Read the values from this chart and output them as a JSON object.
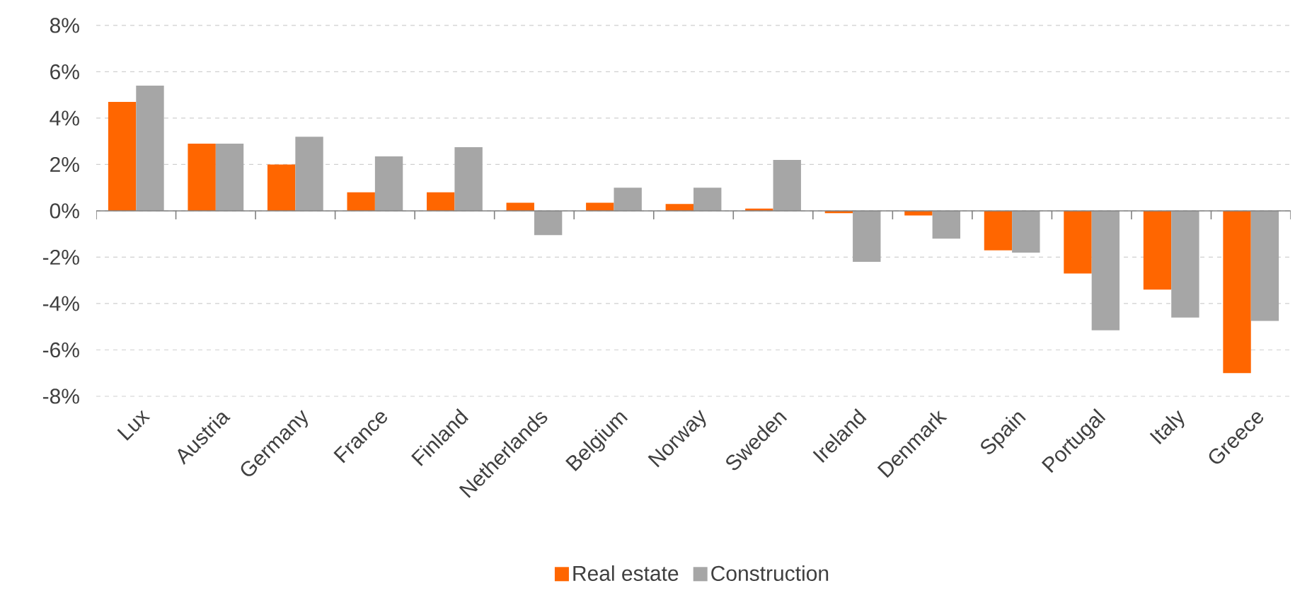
{
  "chart_data": {
    "type": "bar",
    "categories": [
      "Lux",
      "Austria",
      "Germany",
      "France",
      "Finland",
      "Netherlands",
      "Belgium",
      "Norway",
      "Sweden",
      "Ireland",
      "Denmark",
      "Spain",
      "Portugal",
      "Italy",
      "Greece"
    ],
    "series": [
      {
        "name": "Real estate",
        "color": "#ff6600",
        "values": [
          4.7,
          2.9,
          2.0,
          0.8,
          0.8,
          0.35,
          0.35,
          0.3,
          0.1,
          -0.1,
          -0.2,
          -1.7,
          -2.7,
          -3.4,
          -7.0
        ]
      },
      {
        "name": "Construction",
        "color": "#a6a6a6",
        "values": [
          5.4,
          2.9,
          3.2,
          2.35,
          2.75,
          -1.05,
          1.0,
          1.0,
          2.2,
          -2.2,
          -1.2,
          -1.8,
          -5.15,
          -4.6,
          -4.75
        ]
      }
    ],
    "ylim": [
      -8,
      8
    ],
    "yticks": [
      {
        "value": -8,
        "label": "-8%"
      },
      {
        "value": -6,
        "label": "-6%"
      },
      {
        "value": -4,
        "label": "-4%"
      },
      {
        "value": -2,
        "label": "-2%"
      },
      {
        "value": 0,
        "label": "0%"
      },
      {
        "value": 2,
        "label": "2%"
      },
      {
        "value": 4,
        "label": "4%"
      },
      {
        "value": 6,
        "label": "6%"
      },
      {
        "value": 8,
        "label": "8%"
      }
    ],
    "grid": "y",
    "legend": "bottom"
  }
}
